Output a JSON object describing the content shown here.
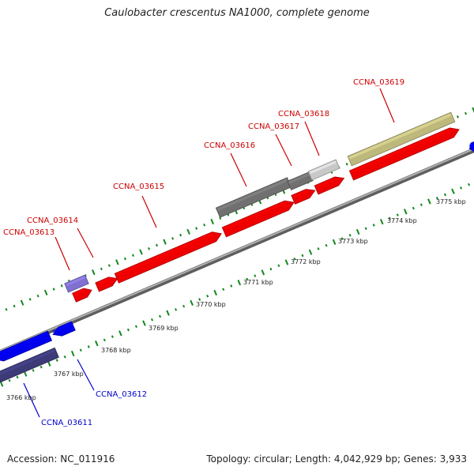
{
  "title": "Caulobacter crescentus NA1000, complete genome",
  "footer": {
    "accession": "Accession: NC_011916",
    "summary": "Topology: circular; Length: 4,042,929 bp; Genes: 3,933"
  },
  "colors": {
    "forward_gene": "#ee0000",
    "reverse_gene": "#0000ee",
    "forward_label": "#cc0000",
    "reverse_label": "#0000cc",
    "backbone": "#888888",
    "tick": "#11881a",
    "feature_dark_gray": "#707070",
    "feature_light_gray": "#c8c8c8",
    "feature_khaki": "#bdb87c",
    "feature_violet": "#8070d0",
    "feature_slate": "#3d3a78"
  },
  "scale_labels": [
    "3766 kbp",
    "3767 kbp",
    "3768 kbp",
    "3769 kbp",
    "3770 kbp",
    "3771 kbp",
    "3772 kbp",
    "3773 kbp",
    "3774 kbp",
    "3775 kbp"
  ],
  "genes": [
    {
      "label": "CCNA_03611",
      "strand": "reverse"
    },
    {
      "label": "CCNA_03612",
      "strand": "reverse"
    },
    {
      "label": "CCNA_03613",
      "strand": "forward"
    },
    {
      "label": "CCNA_03614",
      "strand": "forward"
    },
    {
      "label": "CCNA_03615",
      "strand": "forward"
    },
    {
      "label": "CCNA_03616",
      "strand": "forward"
    },
    {
      "label": "CCNA_03617",
      "strand": "forward"
    },
    {
      "label": "CCNA_03618",
      "strand": "forward"
    },
    {
      "label": "CCNA_03619",
      "strand": "forward"
    }
  ]
}
